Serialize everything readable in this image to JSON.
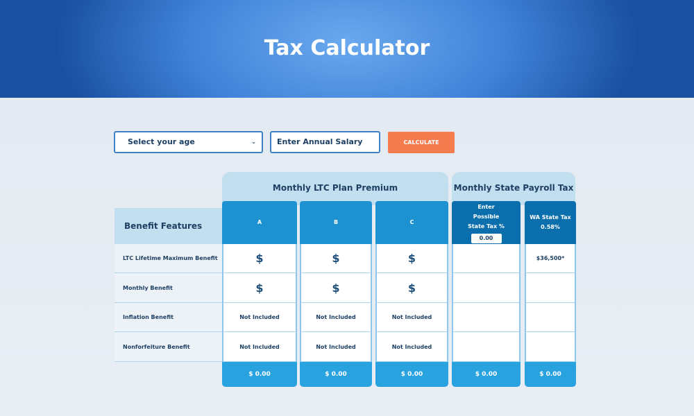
{
  "header": {
    "title": "Tax Calculator"
  },
  "controls": {
    "age_select": "Select your age",
    "salary_placeholder": "Enter Annual Salary",
    "calculate": "CALCULATE"
  },
  "table": {
    "group_premium": "Monthly LTC Plan Premium",
    "group_tax": "Monthly State Payroll Tax",
    "features_header": "Benefit Features",
    "features": [
      "LTC Lifetime Maximum Benefit",
      "Monthly Benefit",
      "Inflation Benefit",
      "Nonforfeiture Benefit"
    ],
    "columns": [
      {
        "title": "A",
        "color": "#1e92d0",
        "cells": [
          "$",
          "$",
          "Not Included",
          "Not Included"
        ],
        "total": "$ 0.00"
      },
      {
        "title": "B",
        "color": "#1e92d0",
        "cells": [
          "$",
          "$",
          "Not Included",
          "Not Included"
        ],
        "total": "$ 0.00"
      },
      {
        "title": "C",
        "color": "#1e92d0",
        "cells": [
          "$",
          "$",
          "Not Included",
          "Not Included"
        ],
        "total": "$ 0.00"
      },
      {
        "title": "Enter Possible State Tax %",
        "input_value": "0.00",
        "color": "#0b6fad",
        "cells": [
          "",
          "",
          "",
          ""
        ],
        "total": "$ 0.00"
      },
      {
        "title": "WA State Tax",
        "subtitle": "0.58%",
        "color": "#0b6fad",
        "cells": [
          "$36,500*",
          "",
          "",
          ""
        ],
        "total": "$ 0.00"
      }
    ]
  }
}
